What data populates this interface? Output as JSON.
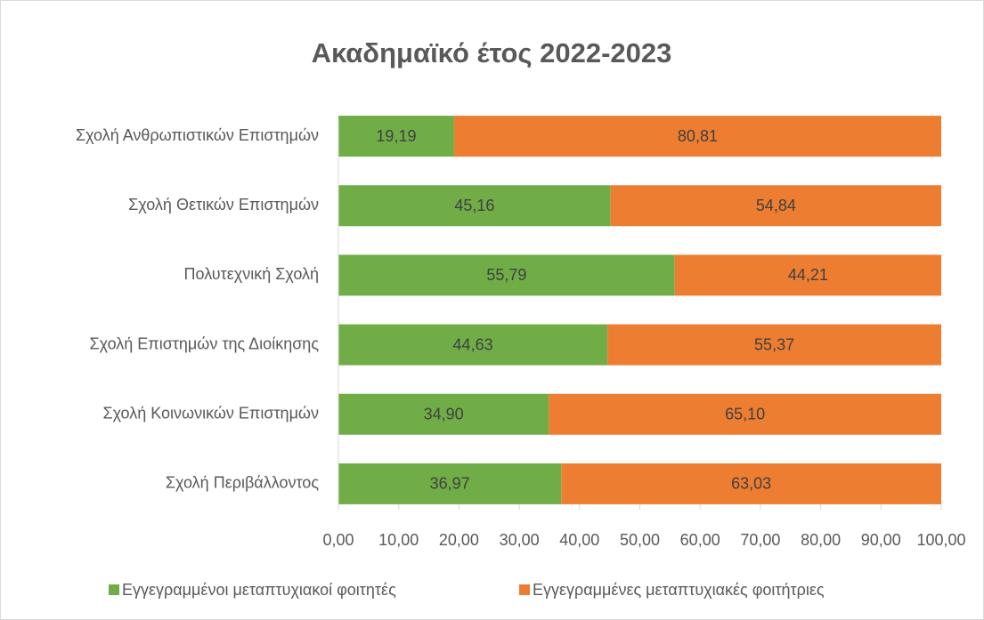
{
  "chart_data": {
    "type": "stacked_barh",
    "title": "Ακαδημαϊκό έτος 2022-2023",
    "categories": [
      "Σχολή Ανθρωπιστικών Επιστημών",
      "Σχολή Θετικών Επιστημών",
      "Πολυτεχνική Σχολή",
      "Σχολή Επιστημών της Διοίκησης",
      "Σχολή Κοινωνικών Επιστημών",
      "Σχολή Περιβάλλοντος"
    ],
    "series": [
      {
        "name": "Εγγεγραμμένοι μεταπτυχιακοί φοιτητές",
        "color": "#70ad47",
        "values": [
          19.19,
          45.16,
          55.79,
          44.63,
          34.9,
          36.97
        ],
        "value_labels": [
          "19,19",
          "45,16",
          "55,79",
          "44,63",
          "34,90",
          "36,97"
        ]
      },
      {
        "name": "Εγγεγραμμένες μεταπτυχιακές φοιτήτριες",
        "color": "#ed7d31",
        "values": [
          80.81,
          54.84,
          44.21,
          55.37,
          65.1,
          63.03
        ],
        "value_labels": [
          "80,81",
          "54,84",
          "44,21",
          "55,37",
          "65,10",
          "63,03"
        ]
      }
    ],
    "xlim": [
      0,
      100
    ],
    "xticks": [
      {
        "value": 0,
        "label": "0,00"
      },
      {
        "value": 10,
        "label": "10,00"
      },
      {
        "value": 20,
        "label": "20,00"
      },
      {
        "value": 30,
        "label": "30,00"
      },
      {
        "value": 40,
        "label": "40,00"
      },
      {
        "value": 50,
        "label": "50,00"
      },
      {
        "value": 60,
        "label": "60,00"
      },
      {
        "value": 70,
        "label": "70,00"
      },
      {
        "value": 80,
        "label": "80,00"
      },
      {
        "value": 90,
        "label": "90,00"
      },
      {
        "value": 100,
        "label": "100,00"
      }
    ],
    "legend": "bottom"
  }
}
